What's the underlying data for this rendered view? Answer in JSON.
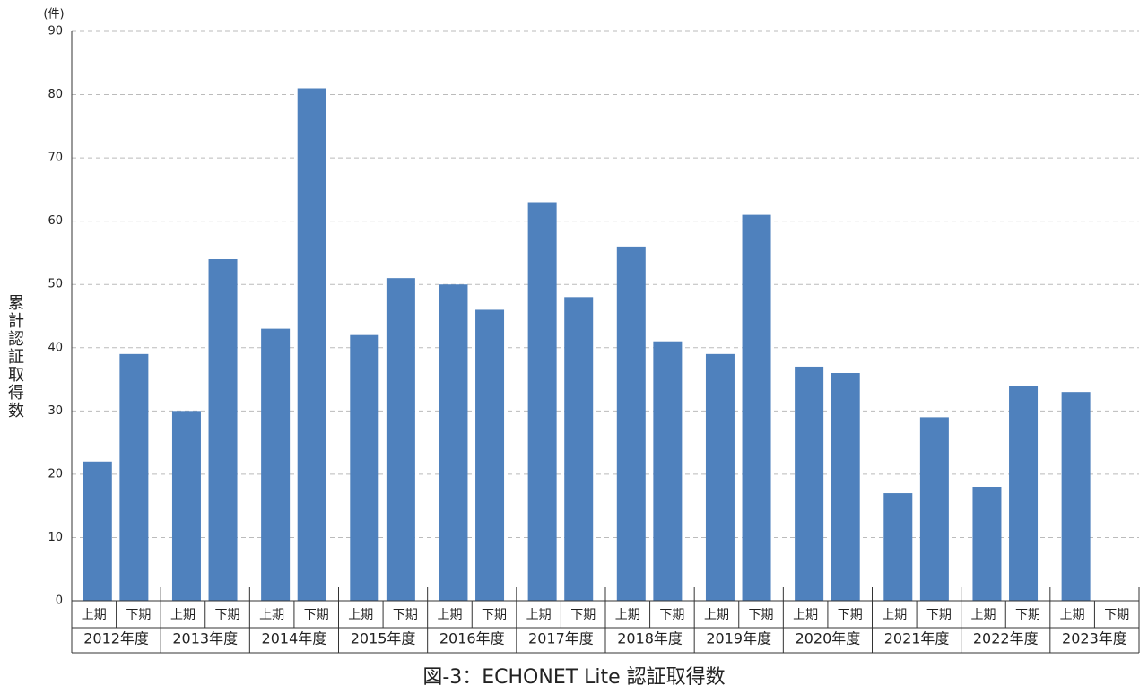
{
  "chart_data": {
    "type": "bar",
    "title": "図-3：ECHONET Lite 認証取得数",
    "y_label": "累計認証取得数",
    "y_unit": "(件)",
    "categories": [
      "上期",
      "下期",
      "上期",
      "下期",
      "上期",
      "下期",
      "上期",
      "下期",
      "上期",
      "下期",
      "上期",
      "下期",
      "上期",
      "下期",
      "上期",
      "下期",
      "上期",
      "下期",
      "上期",
      "下期",
      "上期",
      "下期",
      "上期",
      "下期"
    ],
    "group_labels": [
      "2012年度",
      "2013年度",
      "2014年度",
      "2015年度",
      "2016年度",
      "2017年度",
      "2018年度",
      "2019年度",
      "2020年度",
      "2021年度",
      "2022年度",
      "2023年度"
    ],
    "values": [
      22,
      39,
      30,
      54,
      43,
      81,
      42,
      51,
      50,
      46,
      63,
      48,
      56,
      41,
      39,
      61,
      37,
      36,
      17,
      29,
      18,
      34,
      33,
      null
    ],
    "color": "#4f81bd",
    "ylim": [
      0,
      90
    ],
    "yticks": [
      0,
      10,
      20,
      30,
      40,
      50,
      60,
      70,
      80,
      90
    ],
    "grid": true
  }
}
